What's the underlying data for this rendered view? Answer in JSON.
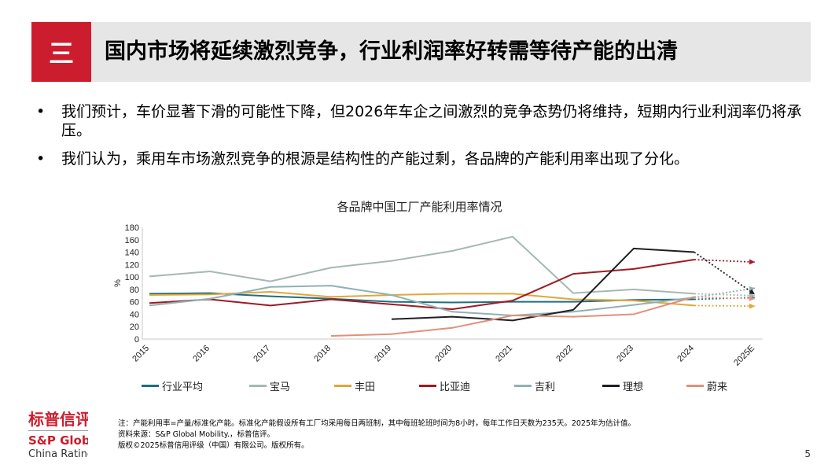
{
  "header": {
    "section_number": "三",
    "title": "国内市场将延续激烈竞争，行业利润率好转需等待产能的出清"
  },
  "bullets": [
    {
      "symbol": "•",
      "text": "我们预计，车价显著下滑的可能性下降，但2026年车企之间激烈的竞争态势仍将维持，短期内行业利润率仍将承压。"
    },
    {
      "symbol": "•",
      "text": "我们认为，乘用车市场激烈竞争的根源是结构性的产能过剩，各品牌的产能利用率出现了分化。"
    }
  ],
  "chart_data": {
    "type": "line",
    "title": "各品牌中国工厂产能利用率情况",
    "ylabel": "%",
    "xlabel": "",
    "categories": [
      "2015",
      "2016",
      "2017",
      "2018",
      "2019",
      "2020",
      "2021",
      "2022",
      "2023",
      "2024",
      "2025E"
    ],
    "ylim": [
      0,
      180
    ],
    "yticks": [
      0,
      20,
      40,
      60,
      80,
      100,
      120,
      140,
      160,
      180
    ],
    "grid": false,
    "legend_position": "bottom",
    "forecast_start_index": 10,
    "series": [
      {
        "name": "行业平均",
        "color": "#1f6e80",
        "values": [
          73,
          74,
          69,
          65,
          60,
          59,
          60,
          60,
          63,
          64,
          67
        ]
      },
      {
        "name": "宝马",
        "color": "#a6b8b3",
        "values": [
          101,
          109,
          93,
          115,
          126,
          142,
          165,
          74,
          80,
          73,
          70
        ]
      },
      {
        "name": "丰田",
        "color": "#e3a638",
        "values": [
          71,
          72,
          76,
          68,
          71,
          73,
          73,
          64,
          62,
          54,
          53
        ]
      },
      {
        "name": "比亚迪",
        "color": "#9e1b23",
        "values": [
          58,
          64,
          54,
          64,
          56,
          48,
          62,
          105,
          113,
          128,
          124
        ]
      },
      {
        "name": "吉利",
        "color": "#8fb1b5",
        "values": [
          54,
          65,
          84,
          86,
          71,
          44,
          38,
          44,
          55,
          67,
          82
        ]
      },
      {
        "name": "理想",
        "color": "#1f1f24",
        "values": [
          null,
          null,
          null,
          null,
          32,
          36,
          30,
          47,
          146,
          140,
          72
        ]
      },
      {
        "name": "蔚来",
        "color": "#e2907a",
        "values": [
          null,
          null,
          null,
          5,
          8,
          18,
          38,
          36,
          40,
          68,
          65
        ]
      }
    ]
  },
  "footer": {
    "logo_cn": "标普信评",
    "logo_en": "S&P Global",
    "logo_sub": "China Ratings",
    "note": "注：产能利用率=产量/标准化产能。标准化产能假设所有工厂均采用每日两班制，其中每班轮班时间为8小时，每年工作日天数为235天。2025年为估计值。",
    "source": "资料来源：S&P Global Mobility.，标普信评。",
    "copyright": "版权©2025标普信用评级（中国）有限公司。版权所有。",
    "page_number": "5"
  }
}
